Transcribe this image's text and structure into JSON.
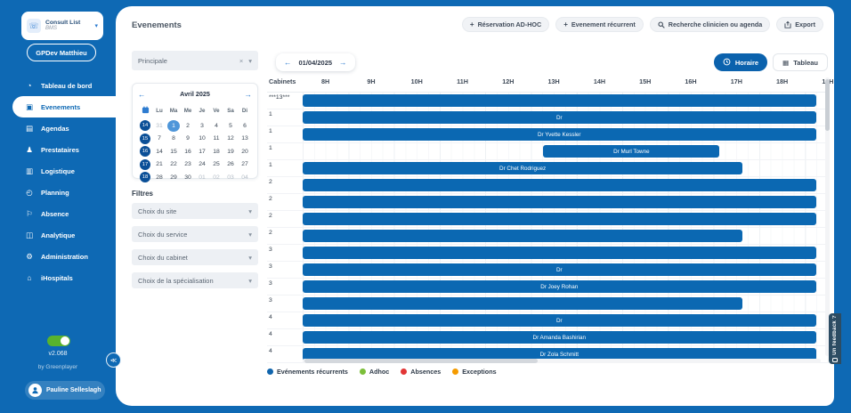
{
  "icons": {
    "phone-icon": "☏",
    "chevron-down-icon": "▾",
    "dropdown-arrow-icon": "▾",
    "clear-icon": "×",
    "arrow-left-icon": "←",
    "arrow-right-icon": "→",
    "plus-icon": "+",
    "table-icon": "▦",
    "dashboard-icon": "◔",
    "events-icon": "▣",
    "agendas-icon": "▤",
    "providers-icon": "♟",
    "logistics-icon": "▥",
    "planning-icon": "◴",
    "absence-icon": "⚐",
    "analytics-icon": "◫",
    "administration-icon": "⚙",
    "ihospitals-icon": "⌂",
    "collapse-icon": "≪"
  },
  "colors": {
    "accent_blue": "#0e69b4",
    "bar_blue": "#0b68b2",
    "toggle_green": "#58b32d"
  },
  "sidebar": {
    "workspace": {
      "name": "Consult List",
      "env": "BMS"
    },
    "user_button": "GPDev Matthieu",
    "items": [
      {
        "id": "tableau-de-bord",
        "label": "Tableau de bord",
        "icon": "dashboard-icon",
        "active": false
      },
      {
        "id": "evenements",
        "label": "Evenements",
        "icon": "events-icon",
        "active": true
      },
      {
        "id": "agendas",
        "label": "Agendas",
        "icon": "agendas-icon",
        "active": false
      },
      {
        "id": "prestataires",
        "label": "Prestataires",
        "icon": "providers-icon",
        "active": false
      },
      {
        "id": "logistique",
        "label": "Logistique",
        "icon": "logistics-icon",
        "active": false
      },
      {
        "id": "planning",
        "label": "Planning",
        "icon": "planning-icon",
        "active": false
      },
      {
        "id": "absence",
        "label": "Absence",
        "icon": "absence-icon",
        "active": false
      },
      {
        "id": "analytique",
        "label": "Analytique",
        "icon": "analytics-icon",
        "active": false
      },
      {
        "id": "administration",
        "label": "Administration",
        "icon": "administration-icon",
        "active": false
      },
      {
        "id": "ihospitals",
        "label": "iHospitals",
        "icon": "ihospitals-icon",
        "active": false
      }
    ],
    "toggle_on": true,
    "version": "v2.068",
    "byline": "by Greenplayer",
    "account": "Pauline Selleslagh"
  },
  "header": {
    "title": "Evenements",
    "actions": [
      {
        "id": "reservation-adhoc",
        "label": "Réservation AD-HOC",
        "icon": "plus-icon"
      },
      {
        "id": "evenement-recurrent",
        "label": "Evenement récurrent",
        "icon": "plus-icon"
      },
      {
        "id": "recherche-clinicien",
        "label": "Recherche clinicien ou agenda",
        "icon": "search-clinician-icon"
      },
      {
        "id": "export",
        "label": "Export",
        "icon": "export-icon"
      }
    ]
  },
  "left_panel": {
    "agenda_select": "Principale",
    "calendar": {
      "title": "Avril 2025",
      "dow": [
        "Lu",
        "Ma",
        "Me",
        "Je",
        "Ve",
        "Sa",
        "Di"
      ],
      "weeks": [
        {
          "num": "14",
          "days": [
            {
              "d": "31",
              "muted": true
            },
            {
              "d": "1",
              "selected": true
            },
            {
              "d": "2"
            },
            {
              "d": "3"
            },
            {
              "d": "4"
            },
            {
              "d": "5"
            },
            {
              "d": "6"
            }
          ]
        },
        {
          "num": "15",
          "days": [
            {
              "d": "7"
            },
            {
              "d": "8"
            },
            {
              "d": "9"
            },
            {
              "d": "10"
            },
            {
              "d": "11"
            },
            {
              "d": "12"
            },
            {
              "d": "13"
            }
          ]
        },
        {
          "num": "16",
          "days": [
            {
              "d": "14"
            },
            {
              "d": "15"
            },
            {
              "d": "16"
            },
            {
              "d": "17"
            },
            {
              "d": "18"
            },
            {
              "d": "19"
            },
            {
              "d": "20"
            }
          ]
        },
        {
          "num": "17",
          "days": [
            {
              "d": "21"
            },
            {
              "d": "22"
            },
            {
              "d": "23"
            },
            {
              "d": "24"
            },
            {
              "d": "25"
            },
            {
              "d": "26"
            },
            {
              "d": "27"
            }
          ]
        },
        {
          "num": "18",
          "days": [
            {
              "d": "28"
            },
            {
              "d": "29"
            },
            {
              "d": "30"
            },
            {
              "d": "01",
              "muted": true
            },
            {
              "d": "02",
              "muted": true
            },
            {
              "d": "03",
              "muted": true
            },
            {
              "d": "04",
              "muted": true
            }
          ]
        }
      ]
    },
    "filters_title": "Filtres",
    "filters": [
      "Choix du site",
      "Choix du service",
      "Choix du cabinet",
      "Choix de la spécialisation"
    ]
  },
  "timeline": {
    "date": "01/04/2025",
    "views": [
      {
        "id": "horaire",
        "label": "Horaire",
        "icon": "clock-icon",
        "active": true
      },
      {
        "id": "tableau",
        "label": "Tableau",
        "icon": "table-icon",
        "active": false
      }
    ],
    "cabinets_header": "Cabinets",
    "hours": [
      "8H",
      "9H",
      "10H",
      "11H",
      "12H",
      "13H",
      "14H",
      "15H",
      "16H",
      "17H",
      "18H",
      "19H"
    ],
    "hour_start": 8,
    "hours_span": 11.5,
    "rows": [
      {
        "cabinet": "***13***",
        "bars": [
          {
            "start": 8,
            "end": 19.2,
            "label": ""
          }
        ]
      },
      {
        "cabinet": "1",
        "bars": [
          {
            "start": 8,
            "end": 19.2,
            "label": "Dr"
          }
        ]
      },
      {
        "cabinet": "1",
        "bars": [
          {
            "start": 8,
            "end": 19.2,
            "label": "Dr Yvette Kessler"
          }
        ]
      },
      {
        "cabinet": "1",
        "bars": [
          {
            "start": 13.25,
            "end": 17.1,
            "label": "Dr Murl Towne"
          }
        ]
      },
      {
        "cabinet": "1",
        "bars": [
          {
            "start": 8,
            "end": 17.6,
            "label": "Dr Chet Rodriguez"
          }
        ]
      },
      {
        "cabinet": "2",
        "bars": [
          {
            "start": 8,
            "end": 19.2,
            "label": ""
          }
        ]
      },
      {
        "cabinet": "2",
        "bars": [
          {
            "start": 8,
            "end": 19.2,
            "label": ""
          }
        ]
      },
      {
        "cabinet": "2",
        "bars": [
          {
            "start": 8,
            "end": 19.2,
            "label": ""
          }
        ]
      },
      {
        "cabinet": "2",
        "bars": [
          {
            "start": 8,
            "end": 17.6,
            "label": ""
          }
        ]
      },
      {
        "cabinet": "3",
        "bars": [
          {
            "start": 8,
            "end": 19.2,
            "label": ""
          }
        ]
      },
      {
        "cabinet": "3",
        "bars": [
          {
            "start": 8,
            "end": 19.2,
            "label": "Dr"
          }
        ]
      },
      {
        "cabinet": "3",
        "bars": [
          {
            "start": 8,
            "end": 19.2,
            "label": "Dr Joey Rohan"
          }
        ]
      },
      {
        "cabinet": "3",
        "bars": [
          {
            "start": 8,
            "end": 17.6,
            "label": ""
          }
        ]
      },
      {
        "cabinet": "4",
        "bars": [
          {
            "start": 8,
            "end": 19.2,
            "label": "Dr"
          }
        ]
      },
      {
        "cabinet": "4",
        "bars": [
          {
            "start": 8,
            "end": 19.2,
            "label": "Dr Amanda Bashirian"
          }
        ]
      },
      {
        "cabinet": "4",
        "bars": [
          {
            "start": 8,
            "end": 19.2,
            "label": "Dr Zola Schmitt"
          }
        ]
      }
    ],
    "legend": [
      {
        "label": "Evénements récurrents",
        "color": "#1165ad"
      },
      {
        "label": "Adhoc",
        "color": "#7cbf3a"
      },
      {
        "label": "Absences",
        "color": "#e23636"
      },
      {
        "label": "Exceptions",
        "color": "#f59b00"
      }
    ]
  },
  "feedback_tab": "Un feedback ?"
}
